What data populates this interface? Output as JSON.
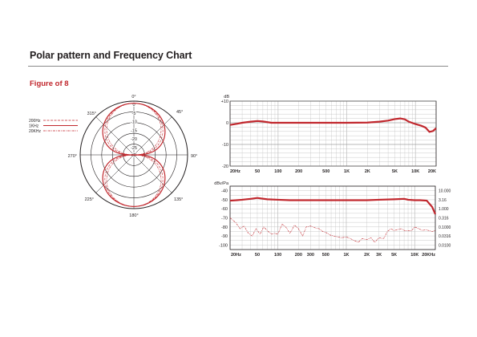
{
  "page": {
    "title": "Polar pattern and Frequency Chart",
    "subtitle": "Figure of 8"
  },
  "colors": {
    "accent": "#c1272d",
    "grid": "#bdbdbd",
    "text": "#231f20"
  },
  "polar": {
    "angle_labels": [
      "0°",
      "45°",
      "90°",
      "135°",
      "180°",
      "225°",
      "270°",
      "315°"
    ],
    "db_labels": [
      "0",
      "-5",
      "-10",
      "-15",
      "-20",
      "-25",
      "dB"
    ],
    "legend": [
      {
        "label": "200Hz",
        "style": "dashed"
      },
      {
        "label": "1KHz",
        "style": "solid"
      },
      {
        "label": "20KHz",
        "style": "dash-dot"
      }
    ]
  },
  "chart_data": [
    {
      "type": "line",
      "ylabel": "dB",
      "y_ticks": [
        "+10",
        "0",
        "-10",
        "-20"
      ],
      "ylim": [
        -20,
        10
      ],
      "x_ticks": [
        "20Hz",
        "50",
        "100",
        "200",
        "500",
        "1K",
        "2K",
        "5K",
        "10K",
        "20K"
      ],
      "x_scale": "log",
      "xlim": [
        20,
        20000
      ],
      "grid": true,
      "series": [
        {
          "x": [
            20,
            25,
            30,
            40,
            50,
            60,
            80,
            100,
            150,
            200,
            300,
            500,
            1000,
            2000,
            3000,
            4000,
            5000,
            6000,
            7000,
            8000,
            10000,
            12000,
            14000,
            16000,
            18000,
            20000
          ],
          "values": [
            -1,
            -0.5,
            0,
            0.5,
            0.8,
            0.6,
            0,
            0,
            0,
            0,
            0,
            0,
            0,
            0.1,
            0.5,
            1,
            1.7,
            2,
            1.6,
            0.5,
            -0.6,
            -1.3,
            -2.2,
            -4.2,
            -3.8,
            -2.5
          ]
        }
      ]
    },
    {
      "type": "line",
      "ylabel": "dBv/Pa",
      "y_ticks": [
        "-40",
        "-50",
        "-60",
        "-70",
        "-80",
        "-90",
        "-100"
      ],
      "ylim": [
        -105,
        -35
      ],
      "y2_ticks": [
        "10.000",
        "3.16",
        "1.000",
        "0.316",
        "0.1000",
        "0.0316",
        "0.0100"
      ],
      "x_ticks": [
        "20Hz",
        "50",
        "100",
        "200",
        "300",
        "500",
        "1K",
        "2K",
        "3K",
        "5K",
        "10K",
        "20KHz"
      ],
      "x_scale": "log",
      "xlim": [
        20,
        20000
      ],
      "grid": true,
      "series": [
        {
          "x": [
            20,
            25,
            30,
            40,
            50,
            70,
            100,
            150,
            200,
            300,
            500,
            1000,
            2000,
            3000,
            5000,
            7000,
            8000,
            10000,
            12000,
            15000,
            18000,
            20000
          ],
          "values": [
            -51,
            -50.5,
            -50,
            -49,
            -48,
            -49.5,
            -50,
            -50.5,
            -50.5,
            -50.5,
            -50.5,
            -50.5,
            -50.5,
            -50,
            -49.5,
            -49,
            -50,
            -50.5,
            -50.5,
            -51,
            -58,
            -66
          ]
        },
        {
          "x": [
            20,
            24,
            28,
            32,
            37,
            42,
            48,
            55,
            62,
            70,
            80,
            90,
            100,
            115,
            130,
            150,
            175,
            200,
            230,
            260,
            300,
            350,
            400,
            450,
            500,
            580,
            650,
            750,
            850,
            1000,
            1150,
            1300,
            1500,
            1700,
            2000,
            2300,
            2600,
            3000,
            3500,
            4000,
            4500,
            5000,
            5600,
            6300,
            7100,
            8000,
            9000,
            10000,
            11500,
            13000,
            14500,
            16000,
            18000,
            20000
          ],
          "values": [
            -70,
            -75,
            -82,
            -79,
            -87,
            -90,
            -82,
            -88,
            -80,
            -84,
            -88,
            -87,
            -88,
            -77,
            -80,
            -87,
            -78,
            -82,
            -90,
            -80,
            -79,
            -81,
            -82,
            -85,
            -86,
            -89,
            -90,
            -91,
            -92,
            -91,
            -93,
            -95,
            -97,
            -93,
            -94,
            -92,
            -97,
            -92,
            -93,
            -85,
            -82,
            -84,
            -83,
            -82,
            -84,
            -84,
            -84,
            -80,
            -82,
            -84,
            -83,
            -84,
            -85,
            -84
          ]
        }
      ]
    }
  ]
}
